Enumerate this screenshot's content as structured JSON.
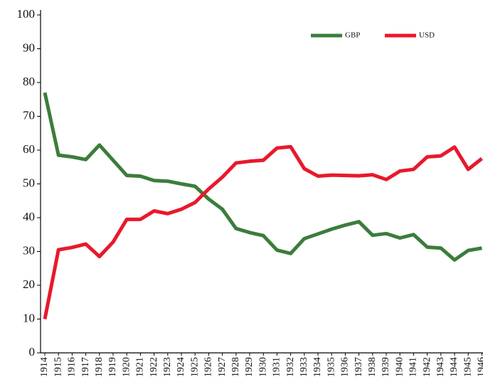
{
  "chart_data": {
    "type": "line",
    "categories": [
      "1914",
      "1915",
      "1916",
      "1917",
      "1918",
      "1919",
      "1920",
      "1921",
      "1922",
      "1923",
      "1924",
      "1925",
      "1926",
      "1927",
      "1928",
      "1929",
      "1930",
      "1931",
      "1932",
      "1933",
      "1934",
      "1935",
      "1936",
      "1937",
      "1938",
      "1939",
      "1940",
      "1941",
      "1942",
      "1943",
      "1944",
      "1945",
      "1946"
    ],
    "series": [
      {
        "name": "GBP",
        "color": "#3b7d3b",
        "values": [
          77,
          58.5,
          58,
          57.2,
          61.5,
          57,
          52.5,
          52.3,
          51,
          50.8,
          50,
          49.3,
          45.5,
          42.5,
          36.8,
          35.6,
          34.7,
          30.4,
          29.4,
          33.8,
          35.2,
          36.6,
          37.8,
          38.8,
          34.8,
          35.3,
          34,
          35,
          31.3,
          31,
          27.5,
          30.3,
          31
        ]
      },
      {
        "name": "USD",
        "color": "#e8192c",
        "values": [
          10,
          30.5,
          31.2,
          32.2,
          28.5,
          32.8,
          39.5,
          39.5,
          42,
          41.2,
          42.5,
          44.5,
          48.5,
          52,
          56.2,
          56.7,
          57,
          60.6,
          61,
          54.5,
          52.3,
          52.6,
          52.5,
          52.4,
          52.7,
          51.3,
          53.8,
          54.3,
          58,
          58.3,
          60.9,
          54.3,
          57.5
        ]
      }
    ],
    "ylim": [
      0,
      100
    ],
    "yticks": [
      0,
      10,
      20,
      30,
      40,
      50,
      60,
      70,
      80,
      90,
      100
    ],
    "legend": "upper right"
  }
}
